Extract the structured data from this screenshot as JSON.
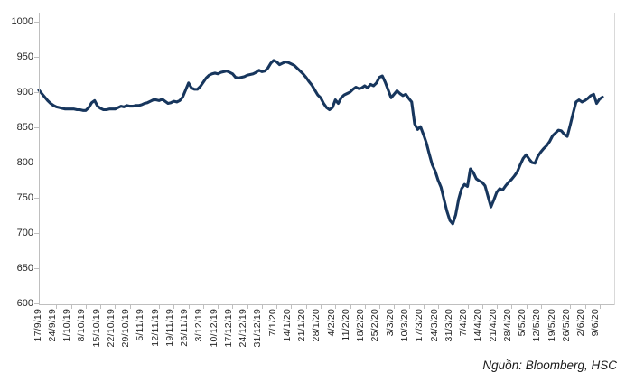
{
  "source_note": "Nguồn: Bloomberg, HSC",
  "colors": {
    "line": "#17365D",
    "axis": "#BFBFBF",
    "plot_border": "#D9D9D9",
    "tick_label": "#262626"
  },
  "chart_data": {
    "type": "line",
    "title": "",
    "xlabel": "",
    "ylabel": "",
    "ylim": [
      600,
      1000
    ],
    "y_ticks": [
      600,
      650,
      700,
      750,
      800,
      850,
      900,
      950,
      1000
    ],
    "grid": false,
    "legend": "none",
    "x_tick_labels": [
      "17/9/19",
      "24/9/19",
      "1/10/19",
      "8/10/19",
      "15/10/19",
      "22/10/19",
      "29/10/19",
      "5/11/19",
      "12/11/19",
      "19/11/19",
      "26/11/19",
      "3/12/19",
      "10/12/19",
      "17/12/19",
      "24/12/19",
      "31/12/19",
      "7/1/20",
      "14/1/20",
      "21/1/20",
      "28/1/20",
      "4/2/20",
      "11/2/20",
      "18/2/20",
      "25/2/20",
      "3/3/20",
      "10/3/20",
      "17/3/20",
      "24/3/20",
      "31/3/20",
      "7/4/20",
      "14/4/20",
      "21/4/20",
      "28/4/20",
      "5/5/20",
      "12/5/20",
      "19/5/20",
      "26/5/20",
      "2/6/20",
      "9/6/20"
    ],
    "series": [
      {
        "name": "index-level",
        "frequency": "daily",
        "values": [
          903,
          898,
          893,
          888,
          884,
          881,
          879,
          878,
          877,
          876,
          876,
          876,
          876,
          875,
          875,
          874,
          874,
          878,
          885,
          888,
          880,
          877,
          875,
          875,
          876,
          876,
          876,
          878,
          880,
          879,
          881,
          880,
          880,
          881,
          881,
          882,
          884,
          885,
          887,
          889,
          889,
          888,
          890,
          887,
          884,
          885,
          887,
          886,
          888,
          893,
          903,
          913,
          906,
          904,
          904,
          908,
          914,
          920,
          924,
          926,
          927,
          926,
          928,
          929,
          930,
          928,
          926,
          921,
          920,
          921,
          922,
          924,
          925,
          926,
          928,
          931,
          929,
          930,
          934,
          941,
          945,
          943,
          939,
          941,
          943,
          942,
          940,
          938,
          934,
          930,
          926,
          921,
          915,
          910,
          903,
          896,
          892,
          884,
          878,
          875,
          878,
          889,
          884,
          892,
          896,
          898,
          900,
          904,
          907,
          905,
          906,
          909,
          906,
          911,
          909,
          913,
          921,
          923,
          914,
          903,
          892,
          897,
          902,
          898,
          895,
          897,
          891,
          886,
          855,
          847,
          851,
          840,
          828,
          812,
          797,
          788,
          775,
          765,
          748,
          731,
          718,
          713,
          726,
          748,
          763,
          769,
          766,
          791,
          786,
          777,
          774,
          772,
          767,
          752,
          737,
          747,
          758,
          763,
          761,
          767,
          772,
          776,
          781,
          787,
          797,
          806,
          811,
          805,
          800,
          799,
          809,
          815,
          820,
          824,
          830,
          838,
          842,
          846,
          845,
          840,
          837,
          853,
          870,
          886,
          889,
          886,
          888,
          891,
          895,
          897,
          884,
          890,
          893
        ]
      }
    ]
  }
}
